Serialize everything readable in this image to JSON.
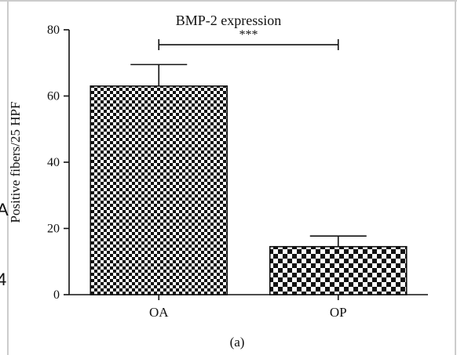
{
  "chart_data": {
    "type": "bar",
    "title": "BMP-2 expression",
    "xlabel": "",
    "ylabel": "Positive fibers/25 HPF",
    "categories": [
      "OA",
      "OP"
    ],
    "values": [
      63,
      14.5
    ],
    "error": [
      6.5,
      3.2
    ],
    "ylim": [
      0,
      80
    ],
    "yticks": [
      0,
      20,
      40,
      60,
      80
    ],
    "significance": {
      "from": "OA",
      "to": "OP",
      "label": "***"
    },
    "patterns": [
      "fine-checker",
      "coarse-checker"
    ],
    "panel_label": "(a)",
    "grid": false,
    "legend": "none"
  },
  "page_edge": {
    "glyphs": [
      "A",
      "4"
    ]
  },
  "colors": {
    "ink": "#111111",
    "frame": "#cccccc",
    "background": "#ffffff"
  }
}
